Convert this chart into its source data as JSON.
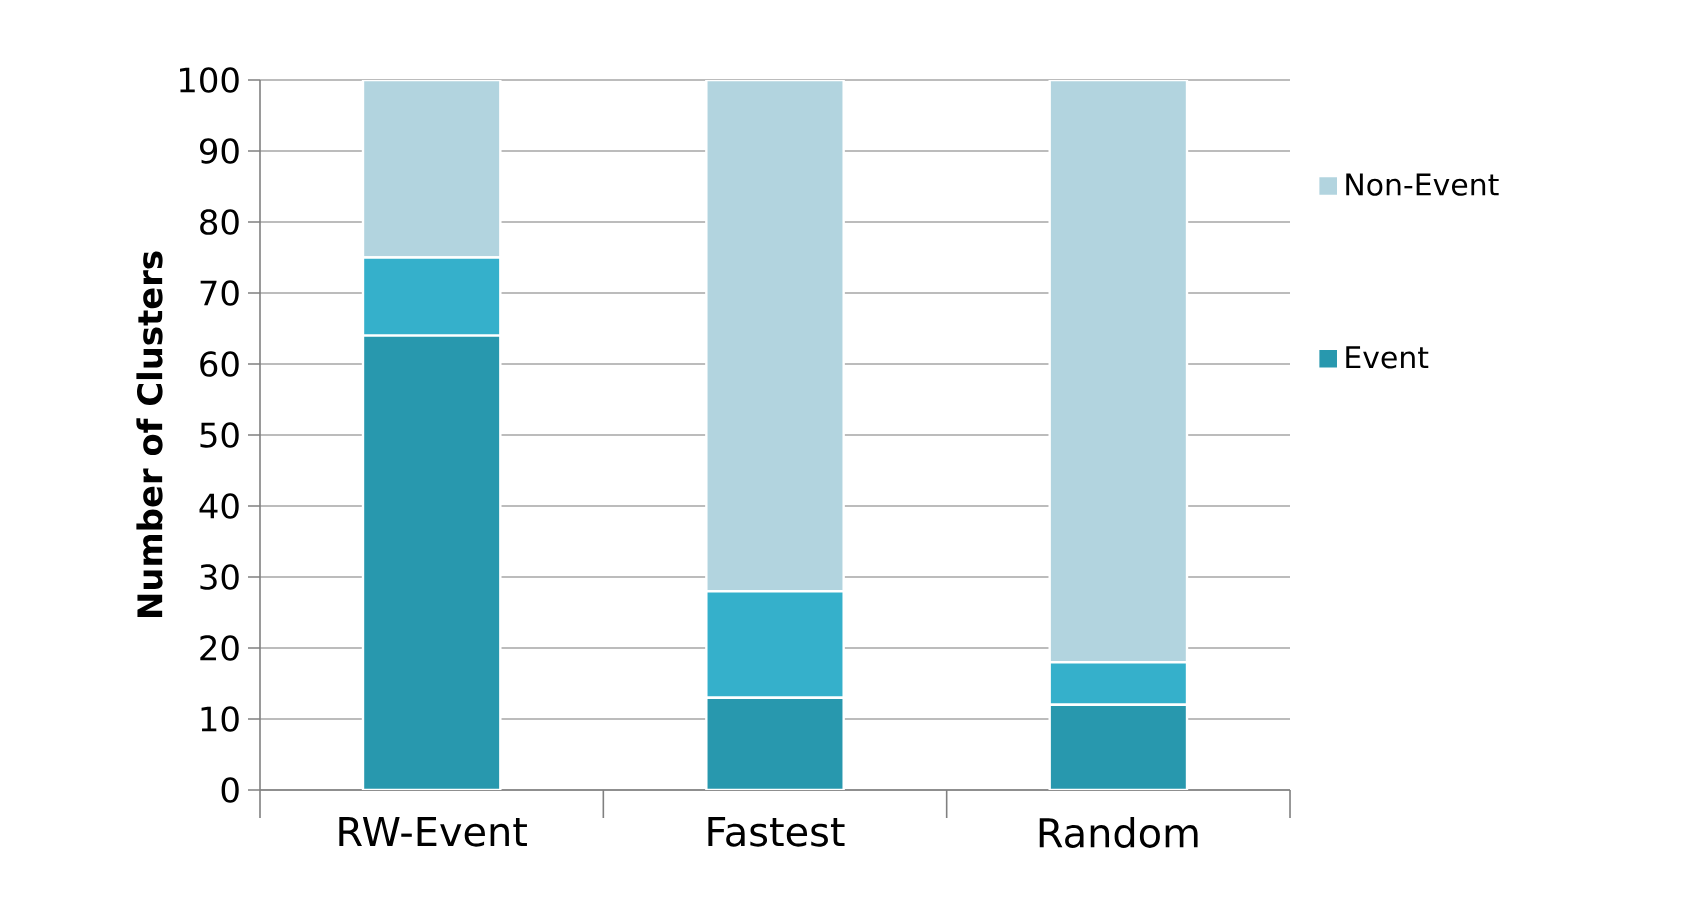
{
  "chart_data": {
    "type": "bar",
    "stacked": true,
    "ylabel": "Number of Clusters",
    "categories": [
      "RW-Event",
      "Fastest",
      "Random"
    ],
    "series": [
      {
        "name": "Event",
        "color": "#2898ae",
        "values": [
          64,
          13,
          12
        ]
      },
      {
        "color": "#35b0cb",
        "values": [
          11,
          15,
          6
        ]
      },
      {
        "name": "Non-Event",
        "color": "#b2d4df",
        "values": [
          25,
          72,
          82
        ]
      }
    ],
    "ylim": [
      0,
      100
    ],
    "yticks": [
      0,
      10,
      20,
      30,
      40,
      50,
      60,
      70,
      80,
      90,
      100
    ],
    "grid": "y",
    "legend": "right"
  }
}
